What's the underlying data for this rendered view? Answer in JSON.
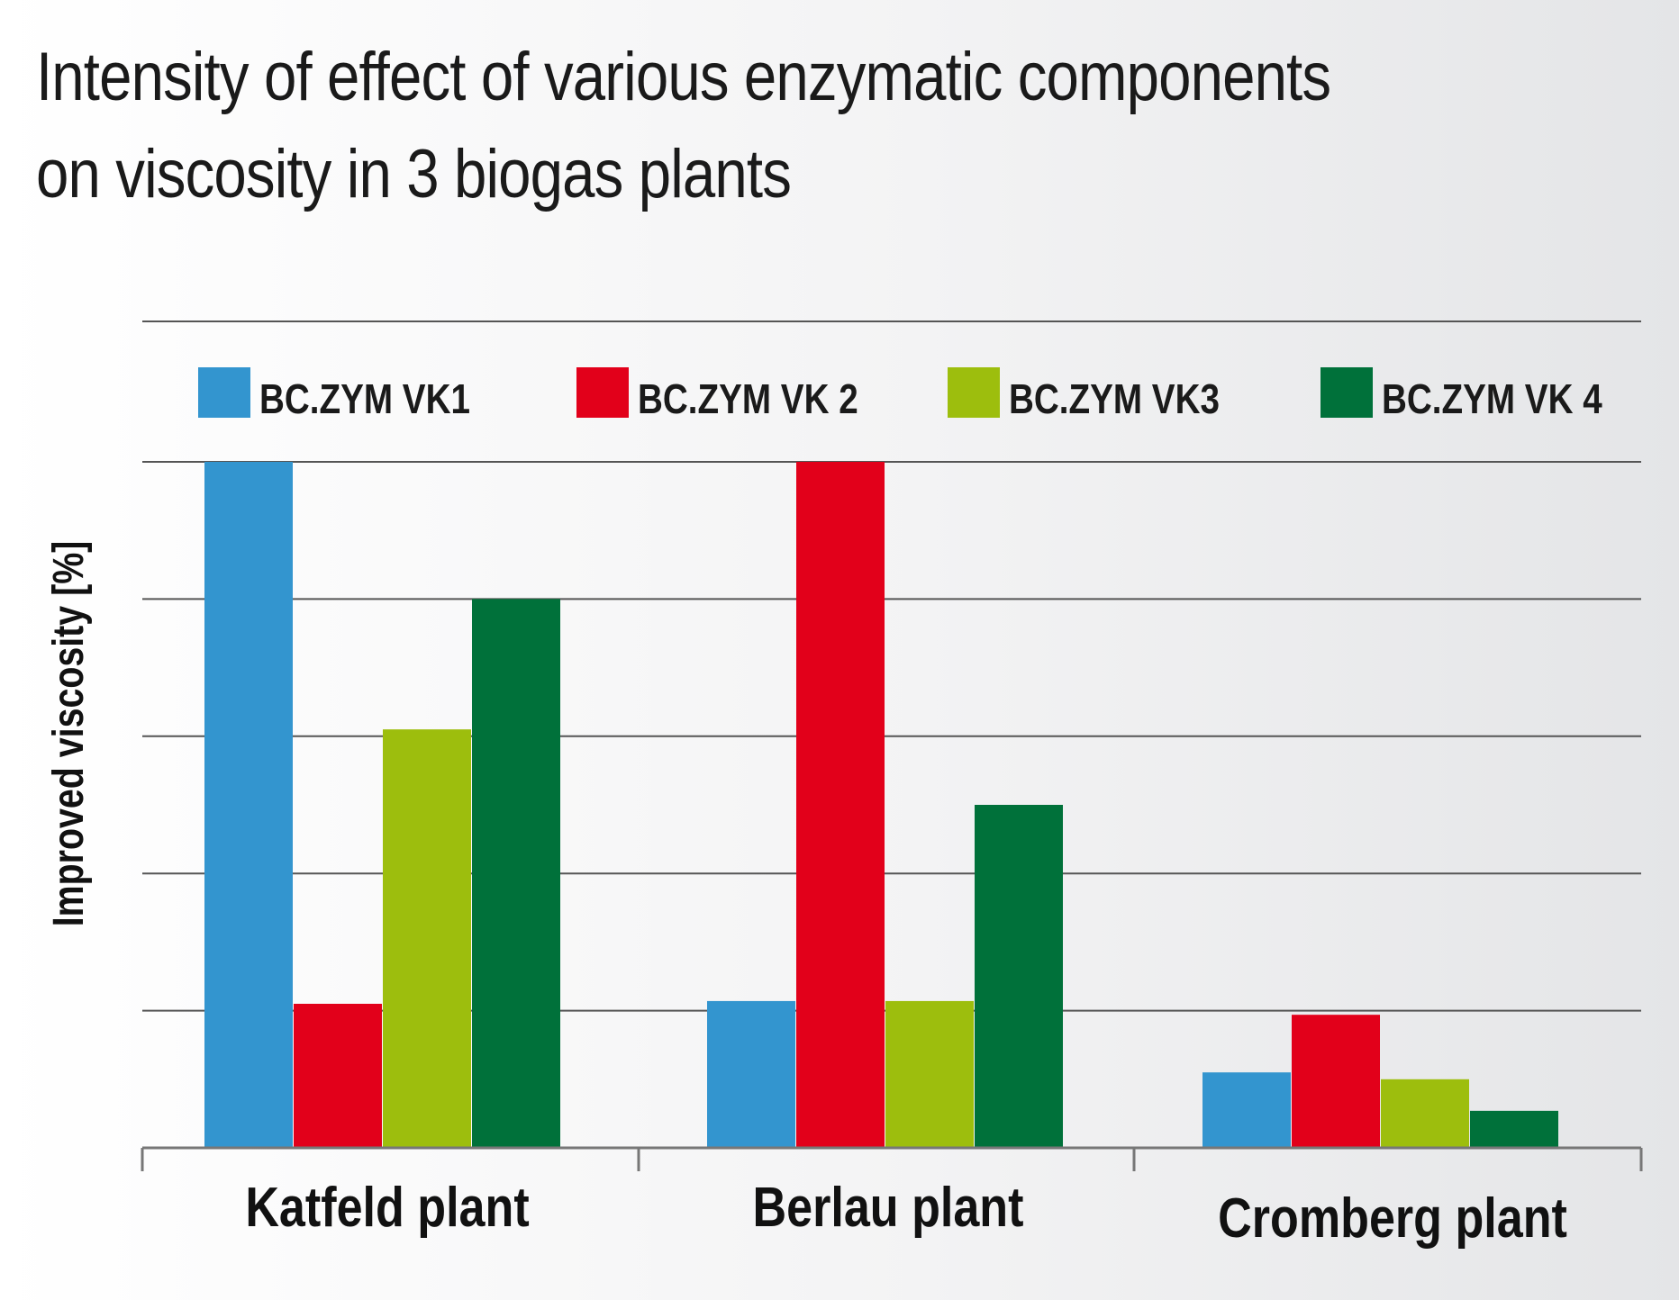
{
  "chart_data": {
    "type": "bar",
    "title_lines": [
      "Intensity of effect of various enzymatic components",
      "on viscosity in 3 biogas plants"
    ],
    "ylabel": "Improved viscosity [%]",
    "xlabel": "",
    "categories": [
      "Katfeld plant",
      "Berlau plant",
      "Cromberg plant"
    ],
    "ylim": [
      0,
      5
    ],
    "grid": true,
    "legend_position": "top",
    "series": [
      {
        "name": "BC.ZYM VK1",
        "color": "#3395cf",
        "values": [
          5.0,
          1.07,
          0.55
        ]
      },
      {
        "name": "BC.ZYM VK 2",
        "color": "#e2001a",
        "values": [
          1.05,
          5.0,
          0.97
        ]
      },
      {
        "name": "BC.ZYM VK3",
        "color": "#9dbe0d",
        "values": [
          3.05,
          1.07,
          0.5
        ]
      },
      {
        "name": "BC.ZYM VK 4",
        "color": "#00713a",
        "values": [
          4.0,
          2.5,
          0.27
        ]
      }
    ]
  }
}
